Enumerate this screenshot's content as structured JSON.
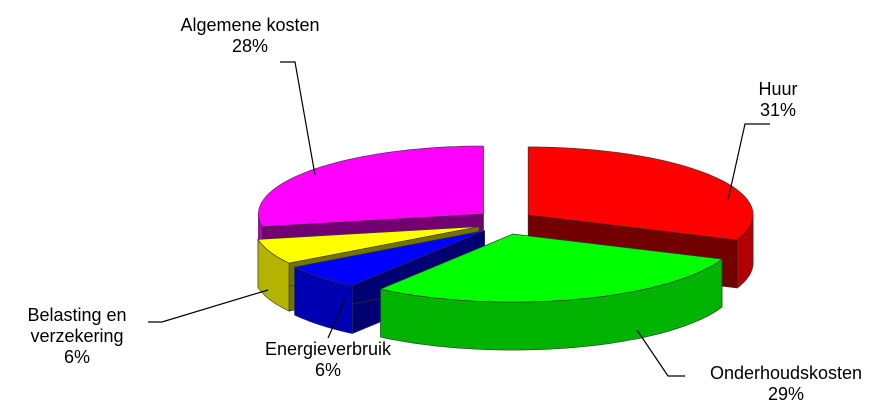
{
  "chart_data": {
    "type": "pie",
    "categories": [
      "Huur",
      "Onderhoudskosten",
      "Energieverbruik",
      "Belasting en verzekering",
      "Algemene kosten"
    ],
    "values": [
      31,
      29,
      6,
      6,
      28
    ],
    "value_labels": [
      "31%",
      "29%",
      "6%",
      "6%",
      "28%"
    ],
    "colors": [
      "#ff0000",
      "#00ff00",
      "#0000ff",
      "#ffff00",
      "#ff00ff"
    ]
  }
}
